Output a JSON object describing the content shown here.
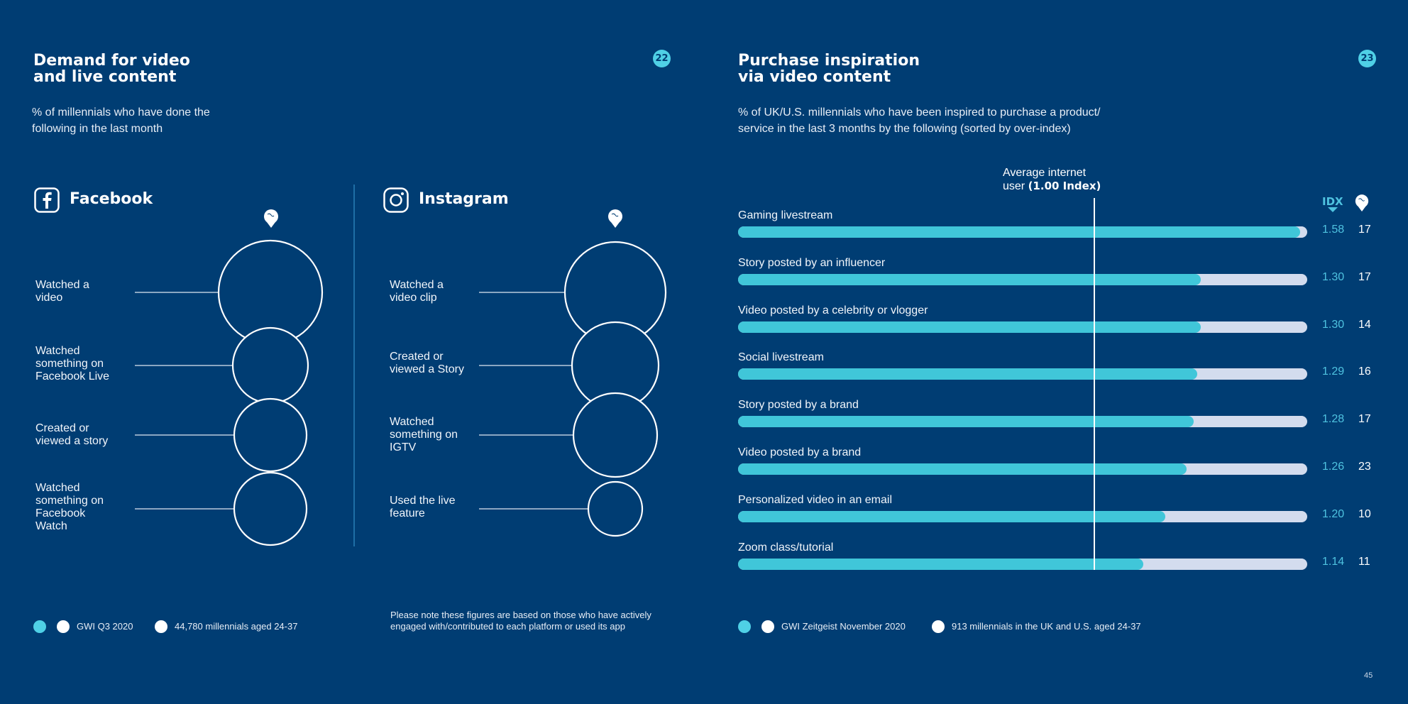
{
  "left_page": {
    "title": "Demand for video\nand live content",
    "badge": "22",
    "subtitle": "% of millennials who have done the\nfollowing in the last month",
    "note": "Please note these figures are based on those who have actively engaged with/contributed to each platform or used its app",
    "source": "GWI Q3 2020",
    "base": "44,780 millennials aged 24-37"
  },
  "right_page": {
    "title": "Purchase inspiration\nvia video content",
    "badge": "23",
    "subtitle": "% of UK/U.S. millennials who have been inspired to purchase a product/\nservice in the last 3 months by the following (sorted by over-index)",
    "avg_label_line1": "Average internet",
    "avg_label_line2_prefix": "user ",
    "avg_label_line2_bold": "(1.00 Index)",
    "idx_header": "IDX",
    "source": "GWI Zeitgeist November 2020",
    "base": "913 millennials in the UK and U.S. aged 24-37",
    "page_number": "45"
  },
  "colors": {
    "background": "#003d73",
    "accent": "#40c6d9",
    "track": "#d3dcee",
    "idx_text": "#4fc3e0"
  },
  "icons": [
    "facebook-icon",
    "instagram-icon",
    "world-pin-icon"
  ],
  "chart_data": [
    {
      "type": "bubble",
      "platform": "Facebook",
      "items": [
        {
          "label": "Watched a\nvideo",
          "relative_size": 1.0
        },
        {
          "label": "Watched\nsomething on\nFacebook Live",
          "relative_size": 0.72
        },
        {
          "label": "Created or\nviewed a story",
          "relative_size": 0.7
        },
        {
          "label": "Watched\nsomething on\nFacebook\nWatch",
          "relative_size": 0.7
        }
      ]
    },
    {
      "type": "bubble",
      "platform": "Instagram",
      "items": [
        {
          "label": "Watched a\nvideo clip",
          "relative_size": 1.0
        },
        {
          "label": "Created or\nviewed a Story",
          "relative_size": 0.85
        },
        {
          "label": "Watched\nsomething on\nIGTV",
          "relative_size": 0.83
        },
        {
          "label": "Used the live\nfeature",
          "relative_size": 0.54
        }
      ]
    },
    {
      "type": "bar",
      "orientation": "horizontal",
      "categories": [
        "Gaming livestream",
        "Story posted by an influencer",
        "Video posted by a celebrity or vlogger",
        "Social livestream",
        "Story posted by a brand",
        "Video posted by a brand",
        "Personalized video in an email",
        "Zoom class/tutorial"
      ],
      "index_values": [
        1.58,
        1.3,
        1.3,
        1.29,
        1.28,
        1.26,
        1.2,
        1.14
      ],
      "index_labels": [
        "1.58",
        "1.30",
        "1.30",
        "1.29",
        "1.28",
        "1.26",
        "1.20",
        "1.14"
      ],
      "percentages": [
        17,
        17,
        14,
        16,
        17,
        23,
        10,
        11
      ],
      "reference_index": 1.0,
      "xlim": [
        0,
        1.6
      ]
    }
  ]
}
